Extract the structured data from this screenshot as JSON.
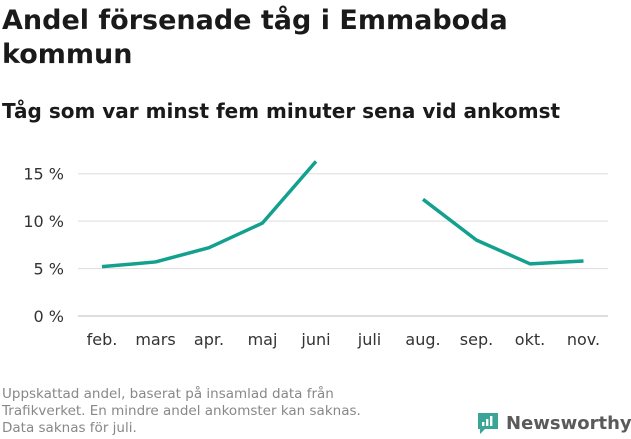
{
  "title": "Andel försenade tåg i Emmaboda kommun",
  "subtitle": "Tåg som var minst fem minuter sena vid ankomst",
  "footnote": [
    "Uppskattad andel, baserat på insamlad data från",
    "Trafikverket. En mindre andel ankomster kan saknas.",
    "Data saknas för juli."
  ],
  "brand": {
    "name": "Newsworthy",
    "icon": "newsworthy-logo-icon",
    "color": "#3aa597"
  },
  "chart_data": {
    "type": "line",
    "title": "Andel försenade tåg i Emmaboda kommun",
    "subtitle": "Tåg som var minst fem minuter sena vid ankomst",
    "categories": [
      "feb.",
      "mars",
      "apr.",
      "maj",
      "juni",
      "juli",
      "aug.",
      "sep.",
      "okt.",
      "nov."
    ],
    "series": [
      {
        "color": "#13a08f",
        "values": [
          5.2,
          5.7,
          7.2,
          9.8,
          16.3,
          null,
          12.3,
          8.0,
          5.5,
          5.8
        ]
      }
    ],
    "yticks": [
      0,
      5,
      10,
      15
    ],
    "ytick_labels": [
      "0 %",
      "5 %",
      "10 %",
      "15 %"
    ],
    "ylim": [
      0,
      17.5
    ],
    "grid": true,
    "legend": "none"
  }
}
